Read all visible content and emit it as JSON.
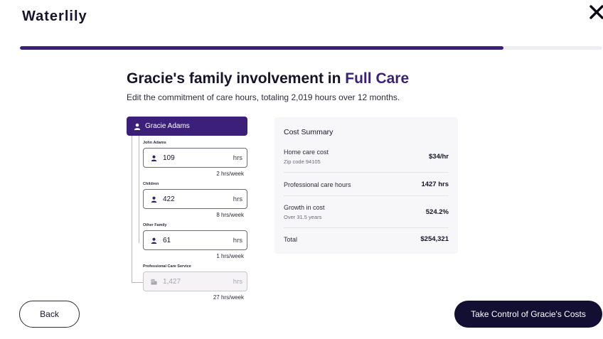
{
  "app": {
    "logo": "Waterlily"
  },
  "progress": {
    "fraction": 0.83
  },
  "header": {
    "title_prefix": "Gracie's family involvement in ",
    "title_accent": "Full Care",
    "subtitle": "Edit the commitment of care hours, totaling 2,019 hours over 12 months."
  },
  "care_tree": {
    "owner": "Gracie Adams",
    "members": [
      {
        "label": "John Adams",
        "value": "109",
        "unit": "hrs",
        "rate": "2 hrs/week",
        "icon": "person-icon",
        "disabled": false
      },
      {
        "label": "Children",
        "value": "422",
        "unit": "hrs",
        "rate": "8 hrs/week",
        "icon": "person-icon",
        "disabled": false
      },
      {
        "label": "Other Family",
        "value": "61",
        "unit": "hrs",
        "rate": "1 hrs/week",
        "icon": "person-icon",
        "disabled": false
      },
      {
        "label": "Professional Care Service",
        "value": "1,427",
        "unit": "hrs",
        "rate": "27 hrs/week",
        "icon": "building-icon",
        "disabled": true
      }
    ]
  },
  "cost_summary": {
    "title": "Cost Summary",
    "rows": [
      {
        "label": "Home care cost",
        "sub": "Zip code 94105",
        "value": "$34/hr"
      },
      {
        "label": "Professional care hours",
        "sub": "",
        "value": "1427 hrs"
      },
      {
        "label": "Growth in cost",
        "sub": "Over 31.5 years",
        "value": "524.2%"
      },
      {
        "label": "Total",
        "sub": "",
        "value": "$254,321"
      }
    ]
  },
  "footer": {
    "back_label": "Back",
    "next_label": "Take Control of Gracie's Costs"
  },
  "colors": {
    "brand": "#3b1f7a",
    "primary_button": "#120f33"
  }
}
